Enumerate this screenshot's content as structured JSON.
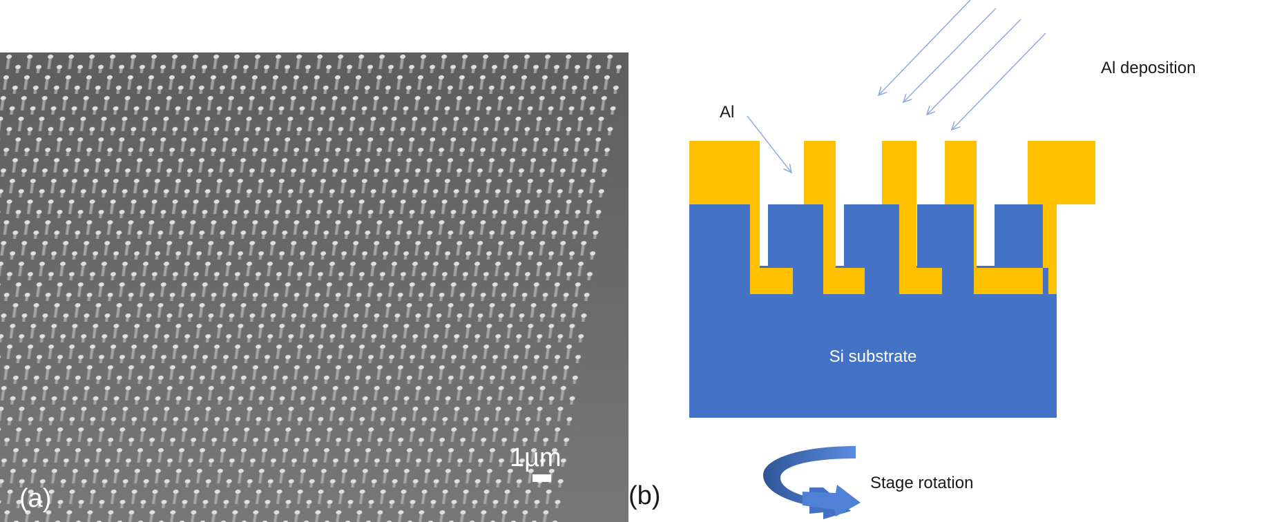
{
  "panel_a": {
    "label": "(a)",
    "scale_bar_label": "1µm",
    "colors": {
      "background": "#6b6b6b",
      "pillar": "#d2d2d2"
    }
  },
  "panel_b": {
    "label": "(b)",
    "al_label": "Al",
    "deposition_label": "Al deposition",
    "substrate_label": "Si substrate",
    "rotation_label": "Stage rotation",
    "colors": {
      "aluminum": "#FFC000",
      "silicon": "#4472C4",
      "arrow": "#8faadc",
      "rotation_arrow": "#3a66c4"
    }
  }
}
